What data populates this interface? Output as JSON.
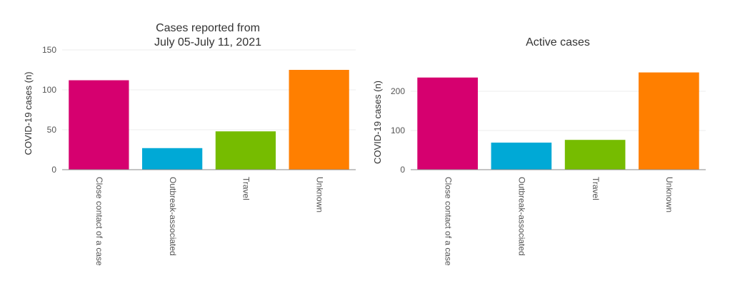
{
  "chart_data": [
    {
      "type": "bar",
      "title_lines": [
        "Cases reported from",
        "July 05-July 11, 2021"
      ],
      "ylabel": "COVID-19 cases (n)",
      "xlabel": "",
      "categories": [
        "Close contact of a case",
        "Outbreak-associated",
        "Travel",
        "Unknown"
      ],
      "values": [
        112,
        27,
        48,
        125
      ],
      "colors": [
        "#d6006f",
        "#00a9d6",
        "#76bc00",
        "#ff7f00"
      ],
      "ylim": [
        0,
        150
      ],
      "yticks": [
        0,
        50,
        100,
        150
      ],
      "grid": true,
      "legend": "none"
    },
    {
      "type": "bar",
      "title_lines": [
        "Active cases"
      ],
      "ylabel": "COVID-19 cases (n)",
      "xlabel": "",
      "categories": [
        "Close contact of a case",
        "Outbreak-associated",
        "Travel",
        "Unknown"
      ],
      "values": [
        235,
        69,
        76,
        248
      ],
      "colors": [
        "#d6006f",
        "#00a9d6",
        "#76bc00",
        "#ff7f00"
      ],
      "ylim": [
        0,
        260
      ],
      "yticks": [
        0,
        100,
        200
      ],
      "grid": true,
      "legend": "none"
    }
  ]
}
